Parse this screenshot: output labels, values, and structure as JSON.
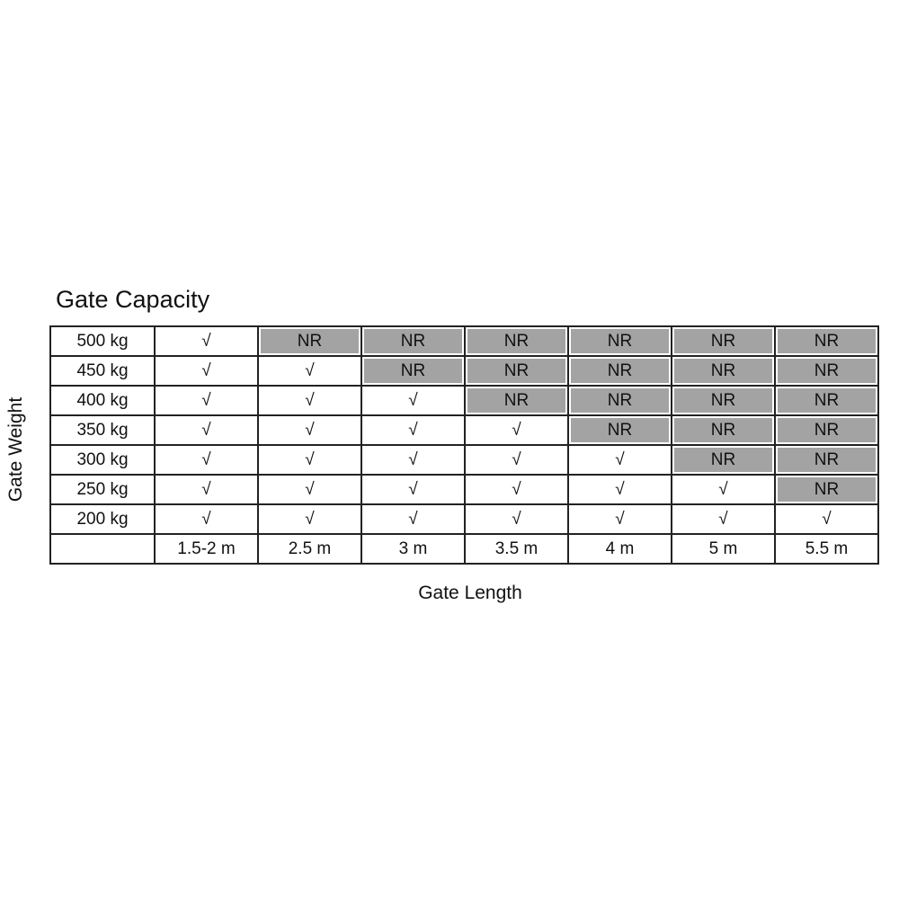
{
  "chart_data": {
    "type": "table",
    "title": "Gate Capacity",
    "ylabel": "Gate Weight",
    "xlabel": "Gate Length",
    "columns": [
      "1.5-2 m",
      "2.5 m",
      "3 m",
      "3.5 m",
      "4 m",
      "5 m",
      "5.5 m"
    ],
    "rows": [
      {
        "label": "500 kg",
        "cells": [
          "√",
          "NR",
          "NR",
          "NR",
          "NR",
          "NR",
          "NR"
        ]
      },
      {
        "label": "450 kg",
        "cells": [
          "√",
          "√",
          "NR",
          "NR",
          "NR",
          "NR",
          "NR"
        ]
      },
      {
        "label": "400 kg",
        "cells": [
          "√",
          "√",
          "√",
          "NR",
          "NR",
          "NR",
          "NR"
        ]
      },
      {
        "label": "350 kg",
        "cells": [
          "√",
          "√",
          "√",
          "√",
          "NR",
          "NR",
          "NR"
        ]
      },
      {
        "label": "300 kg",
        "cells": [
          "√",
          "√",
          "√",
          "√",
          "√",
          "NR",
          "NR"
        ]
      },
      {
        "label": "250 kg",
        "cells": [
          "√",
          "√",
          "√",
          "√",
          "√",
          "√",
          "NR"
        ]
      },
      {
        "label": "200 kg",
        "cells": [
          "√",
          "√",
          "√",
          "√",
          "√",
          "√",
          "√"
        ]
      }
    ],
    "colors": {
      "not_recommended": "#a3a3a3",
      "border": "#222222"
    }
  }
}
